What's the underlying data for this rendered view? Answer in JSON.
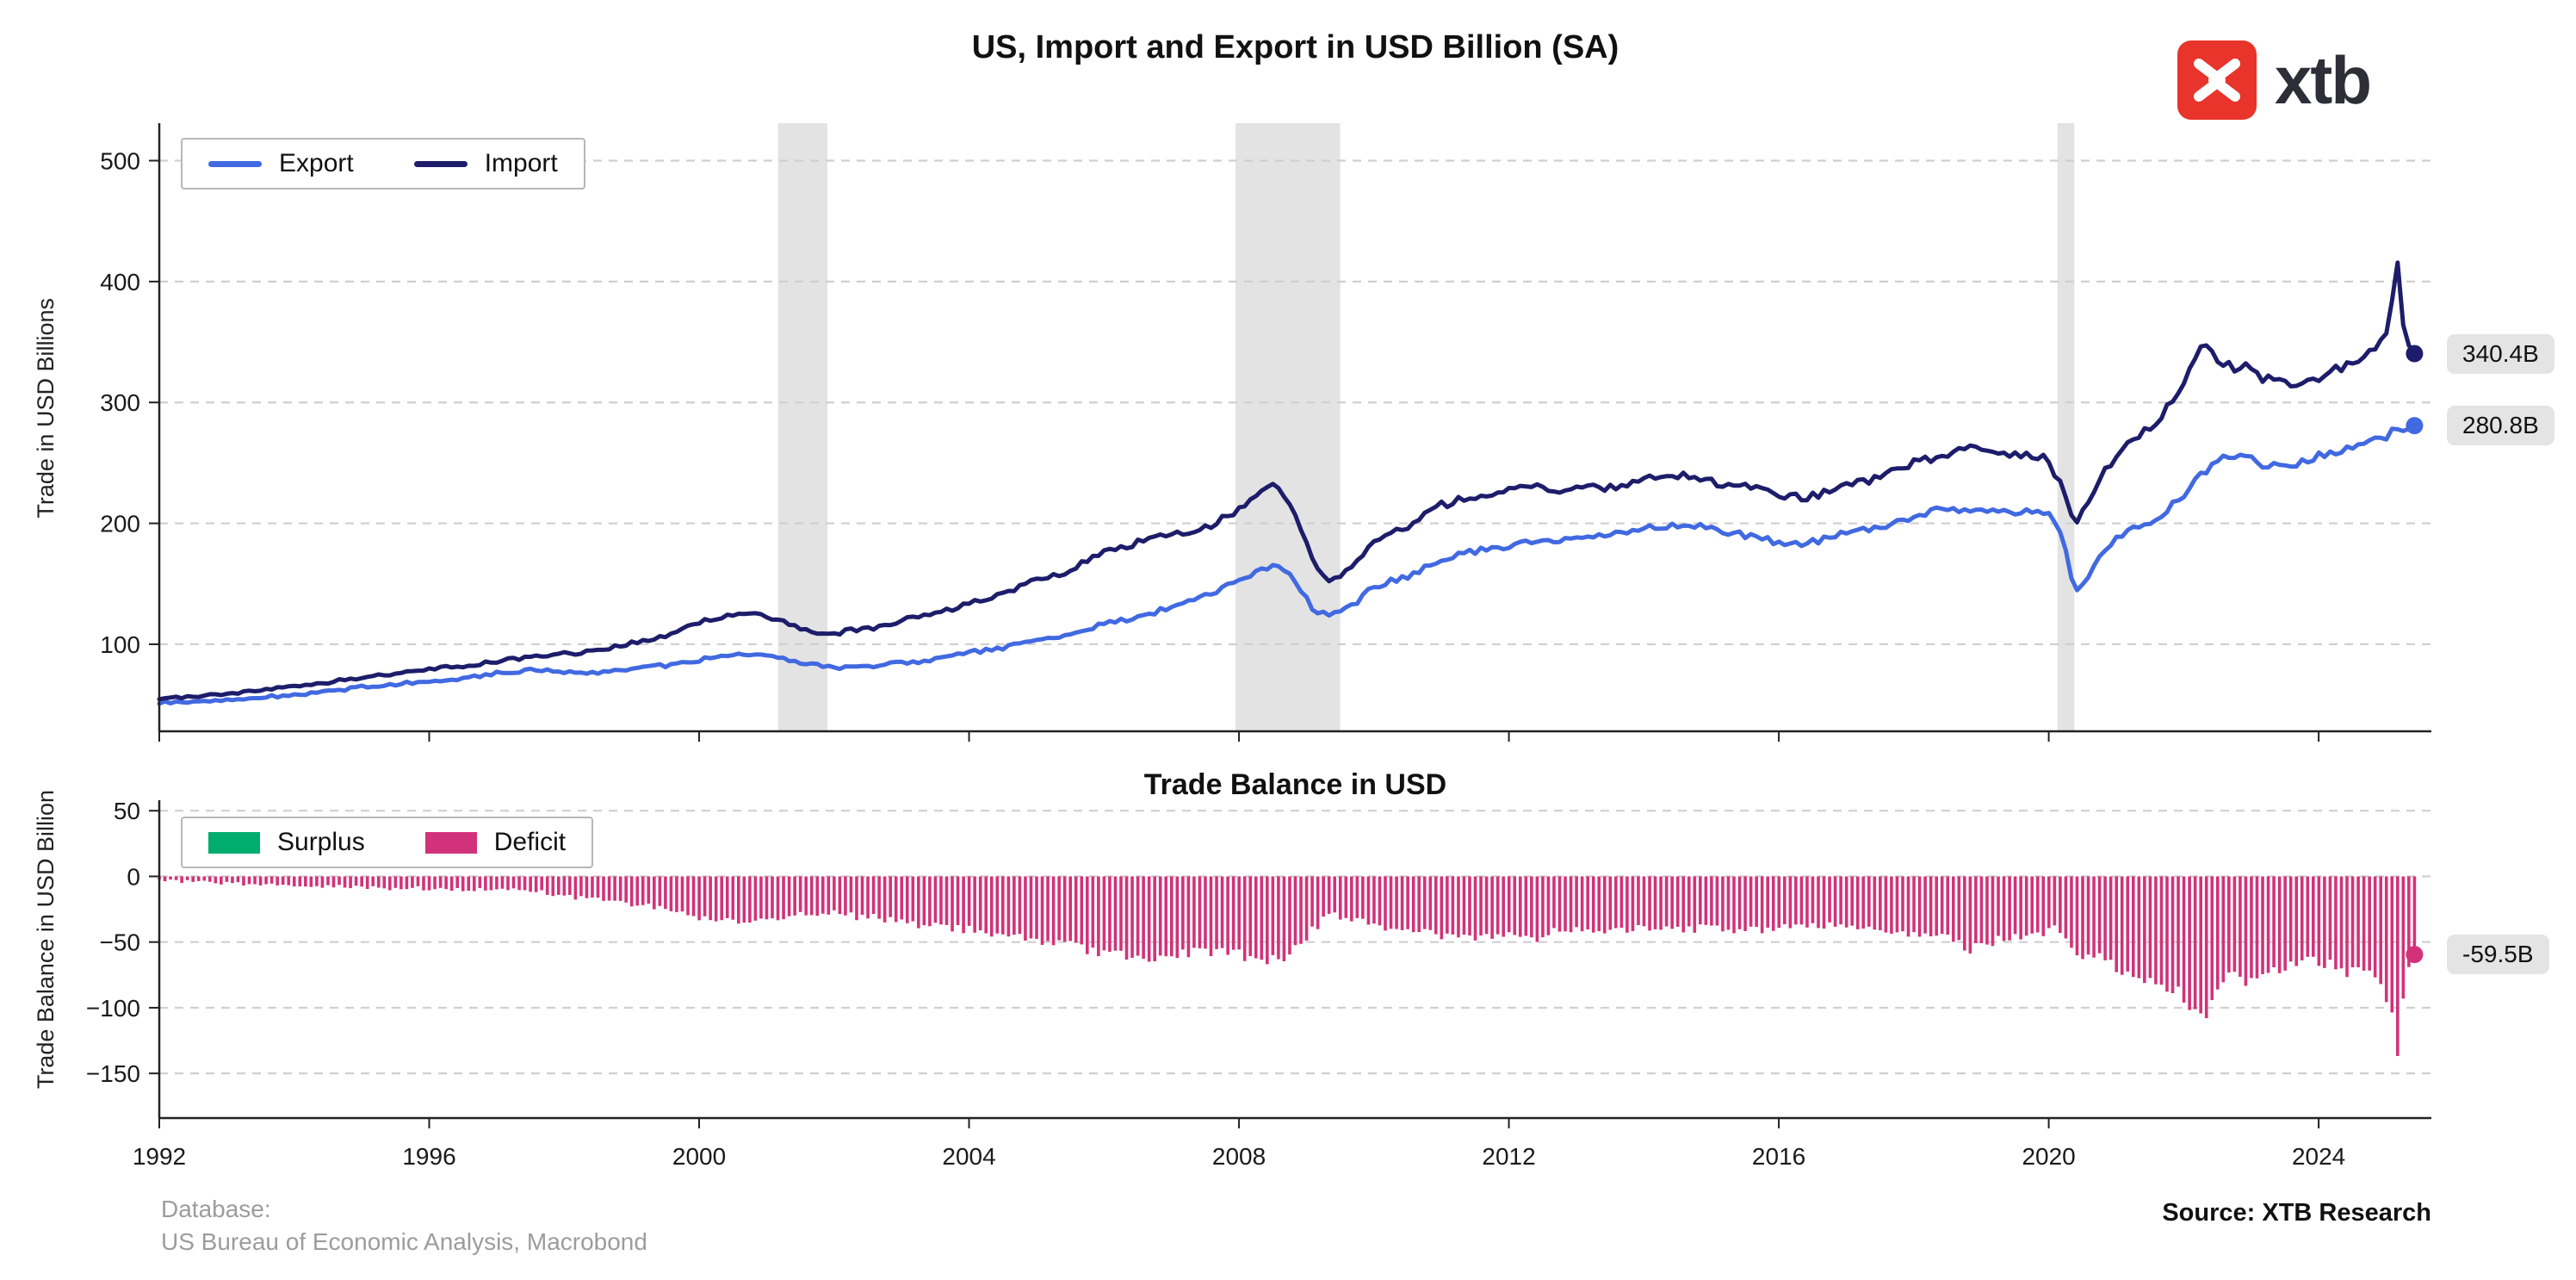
{
  "page": {
    "logo_text": "xtb",
    "footer": {
      "line1": "Database:",
      "line2": "US Bureau of Economic Analysis, Macrobond",
      "source": "Source: XTB Research"
    }
  },
  "colors": {
    "recession": "#e3e3e3",
    "grid": "#cfcfcf",
    "spine": "#222222",
    "tick_text": "#1a1a1a",
    "logo_red": "#e8342b"
  },
  "chart_data": [
    {
      "type": "line",
      "title": "US, Import and Export in USD Billion (SA)",
      "ylabel": "Trade in USD Billions",
      "xlim": [
        1992,
        2025.67
      ],
      "x_end": 2025.42,
      "ylim": [
        28,
        531
      ],
      "yticks": [
        100,
        200,
        300,
        400,
        500
      ],
      "xticks": [
        1992,
        1996,
        2000,
        2004,
        2008,
        2012,
        2016,
        2020,
        2024
      ],
      "grid": "dashed",
      "legend_position": "upper-left",
      "recessions": [
        [
          2001.17,
          2001.9
        ],
        [
          2007.95,
          2009.5
        ],
        [
          2020.13,
          2020.38
        ]
      ],
      "series": [
        {
          "name": "Export",
          "color": "#4169e1",
          "end_label": "280.8B",
          "end_value": 280.8,
          "points": [
            [
              1992,
              51.4
            ],
            [
              1992.5,
              52.5
            ],
            [
              1993,
              54
            ],
            [
              1993.5,
              56
            ],
            [
              1994,
              58
            ],
            [
              1994.5,
              61
            ],
            [
              1995,
              64.5
            ],
            [
              1995.5,
              67
            ],
            [
              1996,
              70
            ],
            [
              1996.5,
              72
            ],
            [
              1997,
              76
            ],
            [
              1997.5,
              78.5
            ],
            [
              1998,
              77.5
            ],
            [
              1998.4,
              76.5
            ],
            [
              1999,
              80
            ],
            [
              1999.5,
              82.5
            ],
            [
              2000,
              87
            ],
            [
              2000.4,
              91
            ],
            [
              2000.8,
              92.5
            ],
            [
              2001.2,
              88
            ],
            [
              2001.6,
              84
            ],
            [
              2002,
              80.5
            ],
            [
              2002.5,
              82
            ],
            [
              2003,
              84.5
            ],
            [
              2003.5,
              87
            ],
            [
              2004,
              93
            ],
            [
              2004.5,
              97
            ],
            [
              2005,
              104
            ],
            [
              2005.5,
              108
            ],
            [
              2006,
              117
            ],
            [
              2006.5,
              122
            ],
            [
              2007,
              131
            ],
            [
              2007.5,
              140
            ],
            [
              2008,
              153
            ],
            [
              2008.3,
              161
            ],
            [
              2008.55,
              167
            ],
            [
              2008.8,
              156
            ],
            [
              2009.1,
              128
            ],
            [
              2009.35,
              123
            ],
            [
              2009.7,
              132
            ],
            [
              2010,
              148
            ],
            [
              2010.5,
              156
            ],
            [
              2011,
              170
            ],
            [
              2011.5,
              177
            ],
            [
              2012,
              182
            ],
            [
              2012.5,
              185
            ],
            [
              2013,
              188
            ],
            [
              2013.5,
              190
            ],
            [
              2014,
              196
            ],
            [
              2014.6,
              199.5
            ],
            [
              2015,
              195
            ],
            [
              2015.5,
              190
            ],
            [
              2016,
              184
            ],
            [
              2016.4,
              183
            ],
            [
              2016.8,
              189
            ],
            [
              2017,
              192
            ],
            [
              2017.5,
              196
            ],
            [
              2018,
              205
            ],
            [
              2018.4,
              213
            ],
            [
              2018.8,
              209
            ],
            [
              2019.2,
              211
            ],
            [
              2019.6,
              209
            ],
            [
              2020,
              211
            ],
            [
              2020.2,
              190
            ],
            [
              2020.38,
              145
            ],
            [
              2020.55,
              152
            ],
            [
              2020.75,
              172
            ],
            [
              2021,
              187
            ],
            [
              2021.3,
              196
            ],
            [
              2021.6,
              204
            ],
            [
              2022,
              224
            ],
            [
              2022.3,
              242
            ],
            [
              2022.6,
              254
            ],
            [
              2022.85,
              256
            ],
            [
              2023.1,
              250
            ],
            [
              2023.5,
              246
            ],
            [
              2023.8,
              251
            ],
            [
              2024,
              256
            ],
            [
              2024.4,
              260
            ],
            [
              2024.7,
              266
            ],
            [
              2025,
              271
            ],
            [
              2025.17,
              279
            ],
            [
              2025.3,
              277
            ],
            [
              2025.42,
              280.8
            ]
          ]
        },
        {
          "name": "Import",
          "color": "#1d1d6b",
          "end_label": "340.4B",
          "end_value": 340.4,
          "points": [
            [
              1992,
              54.7
            ],
            [
              1992.5,
              56.5
            ],
            [
              1993,
              59
            ],
            [
              1993.5,
              62
            ],
            [
              1994,
              65
            ],
            [
              1994.5,
              68.5
            ],
            [
              1995,
              73
            ],
            [
              1995.5,
              76
            ],
            [
              1996,
              79
            ],
            [
              1996.5,
              82
            ],
            [
              1997,
              86
            ],
            [
              1997.5,
              89
            ],
            [
              1998,
              92
            ],
            [
              1998.5,
              94.5
            ],
            [
              1999,
              101
            ],
            [
              1999.5,
              106
            ],
            [
              2000,
              118
            ],
            [
              2000.4,
              123
            ],
            [
              2000.8,
              127
            ],
            [
              2001.2,
              119
            ],
            [
              2001.6,
              112
            ],
            [
              2001.9,
              108
            ],
            [
              2002.2,
              111
            ],
            [
              2002.6,
              114
            ],
            [
              2003,
              120
            ],
            [
              2003.5,
              125
            ],
            [
              2004,
              134
            ],
            [
              2004.5,
              142
            ],
            [
              2005,
              153
            ],
            [
              2005.5,
              161
            ],
            [
              2006,
              177
            ],
            [
              2006.5,
              184
            ],
            [
              2007,
              191
            ],
            [
              2007.5,
              196
            ],
            [
              2008,
              212
            ],
            [
              2008.3,
              224
            ],
            [
              2008.55,
              232
            ],
            [
              2008.8,
              212
            ],
            [
              2009.1,
              168
            ],
            [
              2009.35,
              152
            ],
            [
              2009.7,
              165
            ],
            [
              2010,
              185
            ],
            [
              2010.5,
              198
            ],
            [
              2011,
              215
            ],
            [
              2011.5,
              223
            ],
            [
              2012,
              227
            ],
            [
              2012.4,
              231
            ],
            [
              2012.8,
              227
            ],
            [
              2013,
              228
            ],
            [
              2013.5,
              230
            ],
            [
              2014,
              236
            ],
            [
              2014.6,
              240
            ],
            [
              2015,
              234
            ],
            [
              2015.5,
              231
            ],
            [
              2016,
              223
            ],
            [
              2016.4,
              221
            ],
            [
              2016.8,
              227
            ],
            [
              2017,
              231
            ],
            [
              2017.5,
              238
            ],
            [
              2018,
              251
            ],
            [
              2018.5,
              257
            ],
            [
              2018.85,
              264
            ],
            [
              2019.2,
              260
            ],
            [
              2019.6,
              256
            ],
            [
              2019.95,
              254
            ],
            [
              2020.2,
              230
            ],
            [
              2020.38,
              200
            ],
            [
              2020.55,
              215
            ],
            [
              2020.75,
              235
            ],
            [
              2021,
              258
            ],
            [
              2021.3,
              272
            ],
            [
              2021.6,
              284
            ],
            [
              2022,
              315
            ],
            [
              2022.2,
              341
            ],
            [
              2022.35,
              348
            ],
            [
              2022.55,
              333
            ],
            [
              2022.75,
              329
            ],
            [
              2022.9,
              334
            ],
            [
              2023.1,
              322
            ],
            [
              2023.4,
              317
            ],
            [
              2023.7,
              313
            ],
            [
              2024,
              321
            ],
            [
              2024.3,
              329
            ],
            [
              2024.6,
              337
            ],
            [
              2024.85,
              346
            ],
            [
              2025,
              360
            ],
            [
              2025.08,
              380
            ],
            [
              2025.17,
              419
            ],
            [
              2025.28,
              352
            ],
            [
              2025.35,
              346
            ],
            [
              2025.42,
              340.4
            ]
          ]
        }
      ]
    },
    {
      "type": "bar",
      "title": "Trade Balance in USD",
      "ylabel": "Trade Balance in USD Billion",
      "xlim": [
        1992,
        2025.67
      ],
      "ylim": [
        -184,
        58
      ],
      "yticks": [
        50,
        0,
        -50,
        -100,
        -150
      ],
      "grid": "dashed",
      "derived_from": "export_minus_import_monthly",
      "end_label": "-59.5B",
      "end_value": -59.5,
      "legend": [
        {
          "label": "Surplus",
          "color": "#00ad6f"
        },
        {
          "label": "Deficit",
          "color": "#d23279"
        }
      ]
    }
  ]
}
